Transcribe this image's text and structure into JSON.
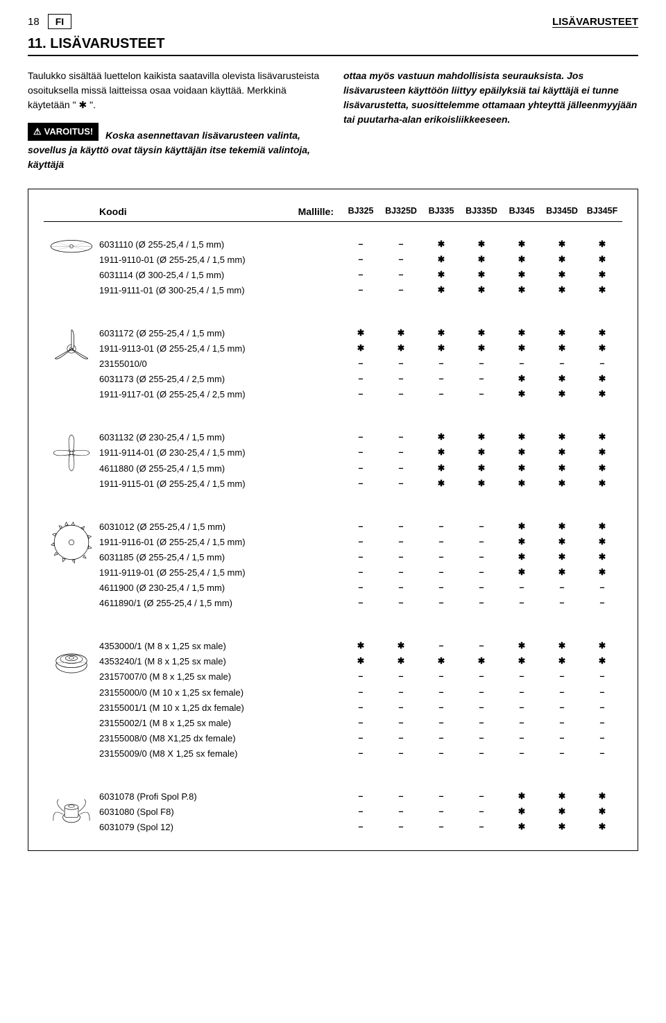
{
  "page": {
    "number": "18",
    "lang": "FI",
    "header_right": "LISÄVARUSTEET"
  },
  "section": {
    "title": "11. LISÄVARUSTEET"
  },
  "intro": {
    "p1a": "Taulukko sisältää luettelon kaikista saatavilla olevista lisävarusteista osoituksella missä laitteissa osaa voidaan käyttää. Merkkinä käytetään \" ",
    "p1b": " \".",
    "warn_label": "VAROITUS!",
    "warn_text": "Koska asennettavan lisävarusteen valinta, sovellus ja käyttö ovat täysin käyttäjän itse tekemiä valintoja, käyttäjä",
    "col2": "ottaa myös vastuun mahdollisista seurauksista. Jos lisävarusteen käyttöön liittyy epäilyksiä tai käyttäjä ei tunne lisävarustetta, suosittelemme ottamaan yhteyttä jälleenmyyjään tai puutarha-alan erikoisliikkeeseen."
  },
  "table": {
    "code_label": "Koodi",
    "model_label": "Mallille:",
    "models": [
      "BJ325",
      "BJ325D",
      "BJ335",
      "BJ335D",
      "BJ345",
      "BJ345D",
      "BJ345F"
    ],
    "star": "✱",
    "dash": "–",
    "groups": [
      {
        "icon": "blade2",
        "rows": [
          {
            "label": "6031110 (Ø 255-25,4 / 1,5 mm)",
            "v": [
              0,
              0,
              1,
              1,
              1,
              1,
              1
            ]
          },
          {
            "label": "1911-9110-01 (Ø 255-25,4 / 1,5 mm)",
            "v": [
              0,
              0,
              1,
              1,
              1,
              1,
              1
            ]
          },
          {
            "label": "6031114 (Ø 300-25,4 / 1,5 mm)",
            "v": [
              0,
              0,
              1,
              1,
              1,
              1,
              1
            ]
          },
          {
            "label": "1911-9111-01 (Ø 300-25,4 / 1,5 mm)",
            "v": [
              0,
              0,
              1,
              1,
              1,
              1,
              1
            ]
          }
        ]
      },
      {
        "icon": "blade3",
        "rows": [
          {
            "label": "6031172 (Ø 255-25,4 / 1,5 mm)",
            "v": [
              1,
              1,
              1,
              1,
              1,
              1,
              1
            ]
          },
          {
            "label": "1911-9113-01 (Ø 255-25,4 / 1,5 mm)",
            "v": [
              1,
              1,
              1,
              1,
              1,
              1,
              1
            ]
          },
          {
            "label": "23155010/0",
            "v": [
              0,
              0,
              0,
              0,
              0,
              0,
              0
            ]
          },
          {
            "label": "6031173 (Ø 255-25,4 / 2,5 mm)",
            "v": [
              0,
              0,
              0,
              0,
              1,
              1,
              1
            ]
          },
          {
            "label": "1911-9117-01 (Ø 255-25,4 / 2,5 mm)",
            "v": [
              0,
              0,
              0,
              0,
              1,
              1,
              1
            ]
          }
        ]
      },
      {
        "icon": "blade4",
        "rows": [
          {
            "label": "6031132 (Ø 230-25,4 / 1,5 mm)",
            "v": [
              0,
              0,
              1,
              1,
              1,
              1,
              1
            ]
          },
          {
            "label": "1911-9114-01 (Ø 230-25,4 / 1,5 mm)",
            "v": [
              0,
              0,
              1,
              1,
              1,
              1,
              1
            ]
          },
          {
            "label": "4611880 (Ø 255-25,4 / 1,5 mm)",
            "v": [
              0,
              0,
              1,
              1,
              1,
              1,
              1
            ]
          },
          {
            "label": "1911-9115-01 (Ø 255-25,4 / 1,5 mm)",
            "v": [
              0,
              0,
              1,
              1,
              1,
              1,
              1
            ]
          }
        ]
      },
      {
        "icon": "saw",
        "rows": [
          {
            "label": "6031012 (Ø 255-25,4 / 1,5 mm)",
            "v": [
              0,
              0,
              0,
              0,
              1,
              1,
              1
            ]
          },
          {
            "label": "1911-9116-01 (Ø 255-25,4 / 1,5 mm)",
            "v": [
              0,
              0,
              0,
              0,
              1,
              1,
              1
            ]
          },
          {
            "label": "6031185 (Ø 255-25,4 / 1,5 mm)",
            "v": [
              0,
              0,
              0,
              0,
              1,
              1,
              1
            ]
          },
          {
            "label": "1911-9119-01 (Ø 255-25,4 / 1,5 mm)",
            "v": [
              0,
              0,
              0,
              0,
              1,
              1,
              1
            ]
          },
          {
            "label": "4611900 (Ø 230-25,4 / 1,5 mm)",
            "v": [
              0,
              0,
              0,
              0,
              0,
              0,
              0
            ]
          },
          {
            "label": "4611890/1 (Ø 255-25,4 / 1,5 mm)",
            "v": [
              0,
              0,
              0,
              0,
              0,
              0,
              0
            ]
          }
        ]
      },
      {
        "icon": "head1",
        "rows": [
          {
            "label": "4353000/1 (M 8 x 1,25 sx male)",
            "v": [
              1,
              1,
              0,
              0,
              1,
              1,
              1
            ]
          },
          {
            "label": "4353240/1 (M 8 x 1,25 sx male)",
            "v": [
              1,
              1,
              1,
              1,
              1,
              1,
              1
            ]
          },
          {
            "label": "23157007/0 (M 8 x 1,25 sx male)",
            "v": [
              0,
              0,
              0,
              0,
              0,
              0,
              0
            ]
          },
          {
            "label": "23155000/0 (M 10 x 1,25 sx female)",
            "v": [
              0,
              0,
              0,
              0,
              0,
              0,
              0
            ]
          },
          {
            "label": "23155001/1 (M 10 x 1,25 dx female)",
            "v": [
              0,
              0,
              0,
              0,
              0,
              0,
              0
            ]
          },
          {
            "label": "23155002/1 (M 8 x 1,25 sx male)",
            "v": [
              0,
              0,
              0,
              0,
              0,
              0,
              0
            ]
          },
          {
            "label": "23155008/0 (M8 X1,25 dx female)",
            "v": [
              0,
              0,
              0,
              0,
              0,
              0,
              0
            ]
          },
          {
            "label": "23155009/0 (M8 X 1,25 sx female)",
            "v": [
              0,
              0,
              0,
              0,
              0,
              0,
              0
            ]
          }
        ]
      },
      {
        "icon": "head2",
        "rows": [
          {
            "label": "6031078 (Profi Spol P.8)",
            "v": [
              0,
              0,
              0,
              0,
              1,
              1,
              1
            ]
          },
          {
            "label": "6031080 (Spol F8)",
            "v": [
              0,
              0,
              0,
              0,
              1,
              1,
              1
            ]
          },
          {
            "label": "6031079 (Spol 12)",
            "v": [
              0,
              0,
              0,
              0,
              1,
              1,
              1
            ]
          }
        ]
      }
    ]
  }
}
